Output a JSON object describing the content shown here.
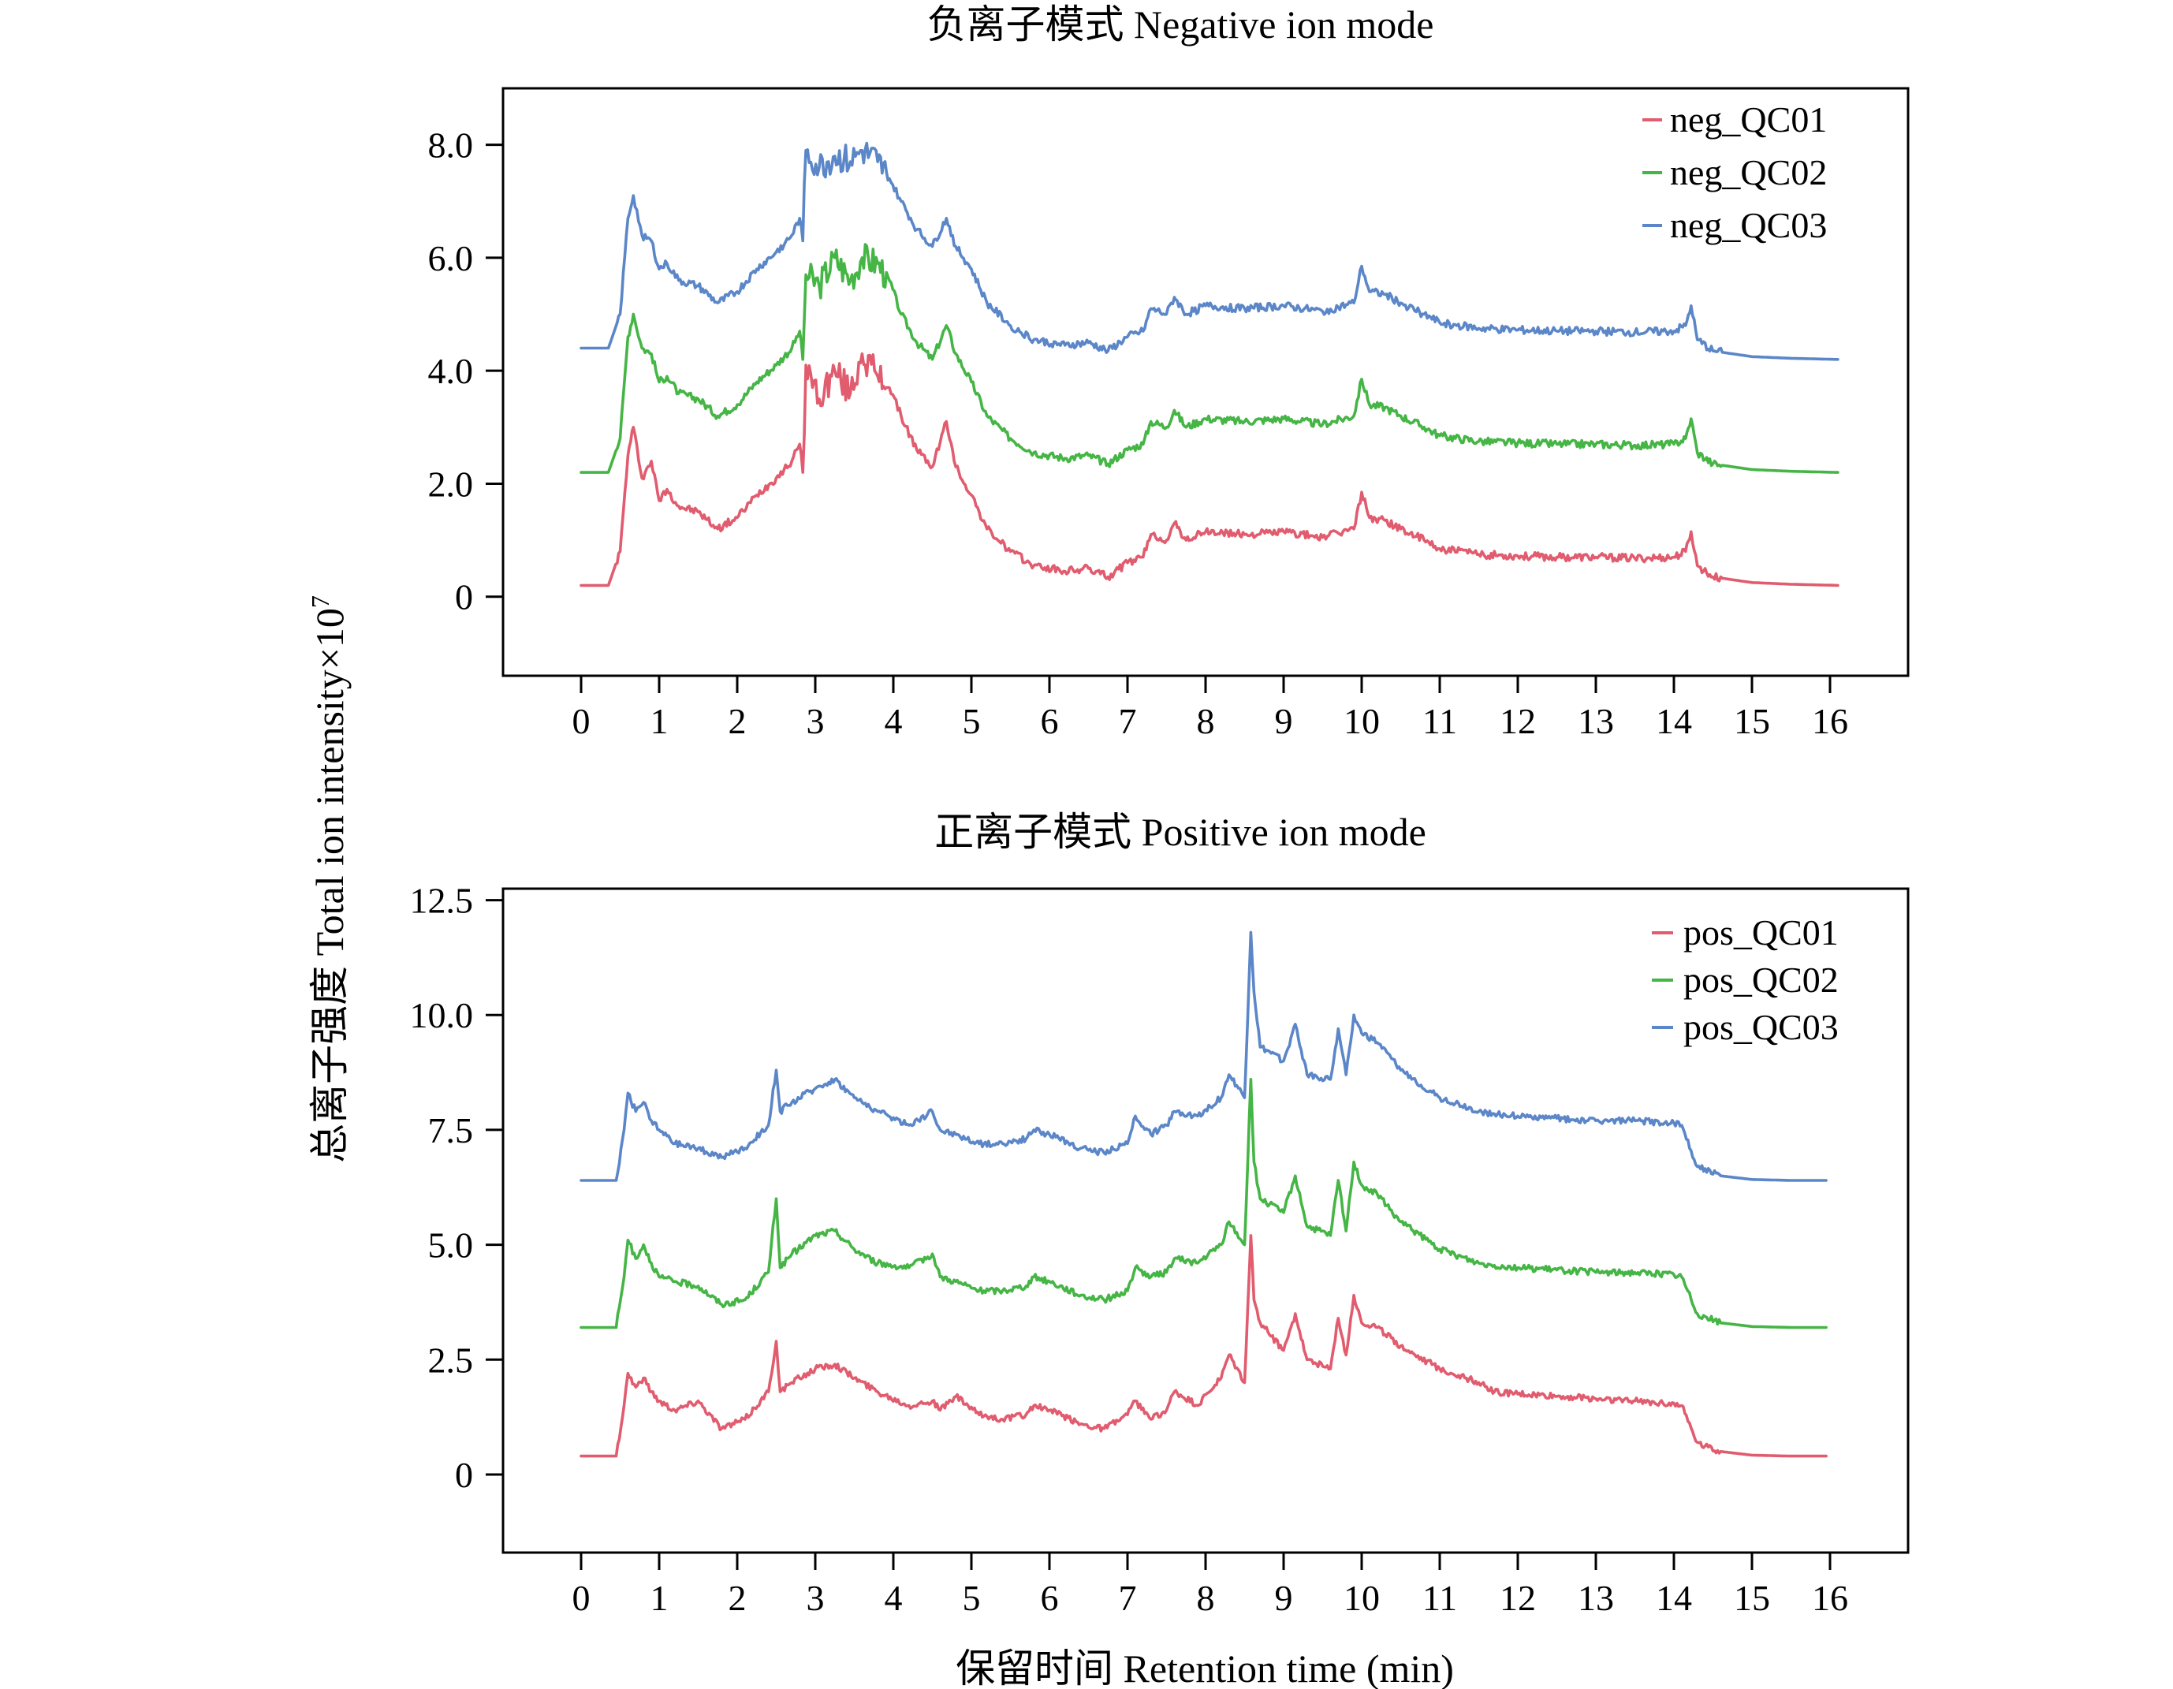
{
  "figure": {
    "y_axis_label": "总离子强度 Total ion intensity×10",
    "y_axis_label_exp": "7",
    "x_axis_label": "保留时间 Retention time (min)"
  },
  "chart_data": [
    {
      "type": "line",
      "title": "负离子模式 Negative ion mode",
      "xlabel": "保留时间 Retention time (min)",
      "ylabel": "总离子强度 Total ion intensity×10^7",
      "xlim": [
        -1,
        17
      ],
      "ylim": [
        -1.4,
        9.0
      ],
      "xticks": [
        0,
        1,
        2,
        3,
        4,
        5,
        6,
        7,
        8,
        9,
        10,
        11,
        12,
        13,
        14,
        15,
        16
      ],
      "xtick_labels": [
        "0",
        "1",
        "2",
        "3",
        "4",
        "5",
        "6",
        "7",
        "8",
        "9",
        "10",
        "11",
        "12",
        "13",
        "14",
        "15",
        "16"
      ],
      "yticks": [
        0,
        2,
        4,
        6,
        8
      ],
      "ytick_labels": [
        "0",
        "2.0",
        "4.0",
        "6.0",
        "8.0"
      ],
      "grid": false,
      "legend_position": "top-right",
      "x": [
        0,
        0.35,
        0.5,
        0.6,
        0.67,
        0.78,
        0.9,
        1.0,
        1.1,
        1.25,
        1.5,
        1.75,
        2.0,
        2.25,
        2.5,
        2.7,
        2.8,
        2.84,
        2.88,
        3.05,
        3.25,
        3.45,
        3.6,
        3.8,
        3.95,
        4.1,
        4.3,
        4.5,
        4.68,
        4.8,
        5.0,
        5.2,
        5.5,
        5.8,
        6.2,
        6.5,
        6.75,
        7.0,
        7.2,
        7.3,
        7.5,
        7.6,
        7.75,
        8.0,
        8.5,
        9.0,
        9.5,
        9.9,
        10.0,
        10.1,
        10.3,
        10.5,
        10.8,
        11.0,
        11.5,
        12.0,
        12.5,
        13.0,
        13.5,
        14.0,
        14.15,
        14.22,
        14.3,
        14.5,
        15.0,
        15.5,
        16.1
      ],
      "series": [
        {
          "name": "neg_QC01",
          "color": "#e05c6e",
          "y": [
            0.2,
            0.2,
            0.8,
            2.5,
            3.0,
            2.1,
            2.4,
            1.7,
            1.9,
            1.6,
            1.5,
            1.2,
            1.4,
            1.8,
            2.1,
            2.4,
            2.7,
            2.2,
            4.1,
            3.5,
            4.0,
            3.6,
            4.3,
            3.9,
            3.7,
            3.2,
            2.6,
            2.3,
            3.1,
            2.3,
            1.8,
            1.2,
            0.8,
            0.55,
            0.45,
            0.5,
            0.35,
            0.6,
            0.7,
            1.1,
            1.0,
            1.3,
            1.0,
            1.15,
            1.1,
            1.15,
            1.05,
            1.2,
            1.85,
            1.4,
            1.35,
            1.2,
            1.0,
            0.85,
            0.75,
            0.72,
            0.7,
            0.7,
            0.68,
            0.7,
            0.8,
            1.15,
            0.55,
            0.35,
            0.25,
            0.22,
            0.2
          ]
        },
        {
          "name": "neg_QC02",
          "color": "#45b545",
          "y": [
            2.2,
            2.2,
            2.8,
            4.6,
            5.0,
            4.4,
            4.3,
            3.8,
            3.9,
            3.6,
            3.5,
            3.2,
            3.4,
            3.8,
            4.1,
            4.4,
            4.7,
            4.2,
            5.7,
            5.5,
            6.0,
            5.6,
            6.0,
            5.9,
            5.6,
            5.0,
            4.5,
            4.2,
            4.8,
            4.3,
            3.8,
            3.2,
            2.8,
            2.55,
            2.45,
            2.5,
            2.35,
            2.6,
            2.7,
            3.1,
            3.0,
            3.3,
            3.0,
            3.15,
            3.1,
            3.15,
            3.05,
            3.2,
            3.85,
            3.4,
            3.35,
            3.2,
            3.0,
            2.85,
            2.75,
            2.72,
            2.7,
            2.7,
            2.68,
            2.7,
            2.8,
            3.15,
            2.55,
            2.35,
            2.25,
            2.22,
            2.2
          ]
        },
        {
          "name": "neg_QC03",
          "color": "#5b86c8",
          "y": [
            4.4,
            4.4,
            5.0,
            6.7,
            7.1,
            6.4,
            6.3,
            5.8,
            5.9,
            5.6,
            5.5,
            5.2,
            5.4,
            5.8,
            6.1,
            6.4,
            6.7,
            6.3,
            7.9,
            7.6,
            7.8,
            7.7,
            7.9,
            7.7,
            7.4,
            7.0,
            6.5,
            6.2,
            6.7,
            6.2,
            5.8,
            5.2,
            4.8,
            4.55,
            4.45,
            4.5,
            4.35,
            4.6,
            4.7,
            5.1,
            5.0,
            5.3,
            5.0,
            5.15,
            5.1,
            5.15,
            5.05,
            5.2,
            5.85,
            5.4,
            5.35,
            5.2,
            5.0,
            4.85,
            4.75,
            4.72,
            4.7,
            4.7,
            4.68,
            4.7,
            4.8,
            5.15,
            4.55,
            4.35,
            4.25,
            4.22,
            4.2
          ]
        }
      ]
    },
    {
      "type": "line",
      "title": "正离子模式 Positive ion mode",
      "xlabel": "保留时间 Retention time (min)",
      "ylabel": "总离子强度 Total ion intensity×10^7",
      "xlim": [
        -1,
        17
      ],
      "ylim": [
        -1.7,
        12.75
      ],
      "xticks": [
        0,
        1,
        2,
        3,
        4,
        5,
        6,
        7,
        8,
        9,
        10,
        11,
        12,
        13,
        14,
        15,
        16
      ],
      "xtick_labels": [
        "0",
        "1",
        "2",
        "3",
        "4",
        "5",
        "6",
        "7",
        "8",
        "9",
        "10",
        "11",
        "12",
        "13",
        "14",
        "15",
        "16"
      ],
      "yticks": [
        0,
        2.5,
        5.0,
        7.5,
        10.0,
        12.5
      ],
      "ytick_labels": [
        "0",
        "2.5",
        "5.0",
        "7.5",
        "10.0",
        "12.5"
      ],
      "grid": false,
      "legend_position": "top-right",
      "x": [
        0,
        0.45,
        0.55,
        0.6,
        0.7,
        0.8,
        0.9,
        1.0,
        1.2,
        1.5,
        1.8,
        2.1,
        2.4,
        2.5,
        2.55,
        2.7,
        3.0,
        3.25,
        3.5,
        3.8,
        4.2,
        4.5,
        4.6,
        4.8,
        5.1,
        5.4,
        5.7,
        5.8,
        6.0,
        6.4,
        6.7,
        7.0,
        7.1,
        7.3,
        7.5,
        7.6,
        7.9,
        8.2,
        8.3,
        8.5,
        8.58,
        8.62,
        8.7,
        9.0,
        9.15,
        9.3,
        9.6,
        9.7,
        9.8,
        9.9,
        10.0,
        10.2,
        10.5,
        11.0,
        11.5,
        11.7,
        12.0,
        12.5,
        13.0,
        13.5,
        14.0,
        14.1,
        14.3,
        14.6,
        15.0,
        15.5,
        15.95
      ],
      "series": [
        {
          "name": "pos_QC01",
          "color": "#e05c6e",
          "y": [
            0.4,
            0.4,
            1.5,
            2.2,
            1.9,
            2.1,
            1.8,
            1.6,
            1.4,
            1.6,
            1.0,
            1.2,
            1.8,
            2.9,
            1.8,
            2.0,
            2.3,
            2.4,
            2.1,
            1.8,
            1.5,
            1.6,
            1.4,
            1.7,
            1.3,
            1.2,
            1.3,
            1.5,
            1.4,
            1.1,
            1.0,
            1.3,
            1.6,
            1.2,
            1.4,
            1.8,
            1.5,
            2.1,
            2.6,
            2.0,
            5.2,
            3.8,
            3.3,
            2.7,
            3.5,
            2.5,
            2.3,
            3.4,
            2.6,
            3.9,
            3.3,
            3.2,
            2.8,
            2.3,
            2.0,
            1.8,
            1.75,
            1.7,
            1.65,
            1.6,
            1.55,
            1.5,
            0.7,
            0.5,
            0.42,
            0.4,
            0.4
          ]
        },
        {
          "name": "pos_QC02",
          "color": "#45b545",
          "y": [
            3.2,
            3.2,
            4.3,
            5.1,
            4.7,
            5.0,
            4.6,
            4.3,
            4.2,
            4.1,
            3.7,
            3.8,
            4.4,
            6.0,
            4.5,
            4.8,
            5.2,
            5.3,
            4.9,
            4.6,
            4.5,
            4.8,
            4.3,
            4.2,
            4.0,
            4.0,
            4.1,
            4.3,
            4.2,
            3.9,
            3.8,
            4.0,
            4.5,
            4.3,
            4.4,
            4.7,
            4.6,
            5.0,
            5.5,
            5.0,
            8.6,
            6.8,
            6.0,
            5.7,
            6.5,
            5.4,
            5.2,
            6.4,
            5.3,
            6.8,
            6.3,
            6.1,
            5.5,
            4.9,
            4.6,
            4.55,
            4.5,
            4.45,
            4.4,
            4.4,
            4.35,
            4.3,
            3.5,
            3.3,
            3.22,
            3.2,
            3.2
          ]
        },
        {
          "name": "pos_QC03",
          "color": "#5b86c8",
          "y": [
            6.4,
            6.4,
            7.5,
            8.3,
            7.9,
            8.1,
            7.7,
            7.5,
            7.2,
            7.1,
            6.9,
            7.1,
            7.6,
            8.8,
            7.9,
            8.1,
            8.4,
            8.6,
            8.2,
            7.9,
            7.6,
            7.9,
            7.5,
            7.4,
            7.2,
            7.2,
            7.3,
            7.5,
            7.4,
            7.1,
            7.0,
            7.2,
            7.8,
            7.4,
            7.6,
            7.9,
            7.8,
            8.2,
            8.7,
            8.2,
            11.8,
            10.5,
            9.3,
            9.0,
            9.8,
            8.7,
            8.6,
            9.7,
            8.7,
            10.0,
            9.6,
            9.4,
            8.8,
            8.2,
            7.9,
            7.85,
            7.8,
            7.75,
            7.7,
            7.7,
            7.65,
            7.6,
            6.7,
            6.5,
            6.42,
            6.4,
            6.4
          ]
        }
      ]
    }
  ]
}
